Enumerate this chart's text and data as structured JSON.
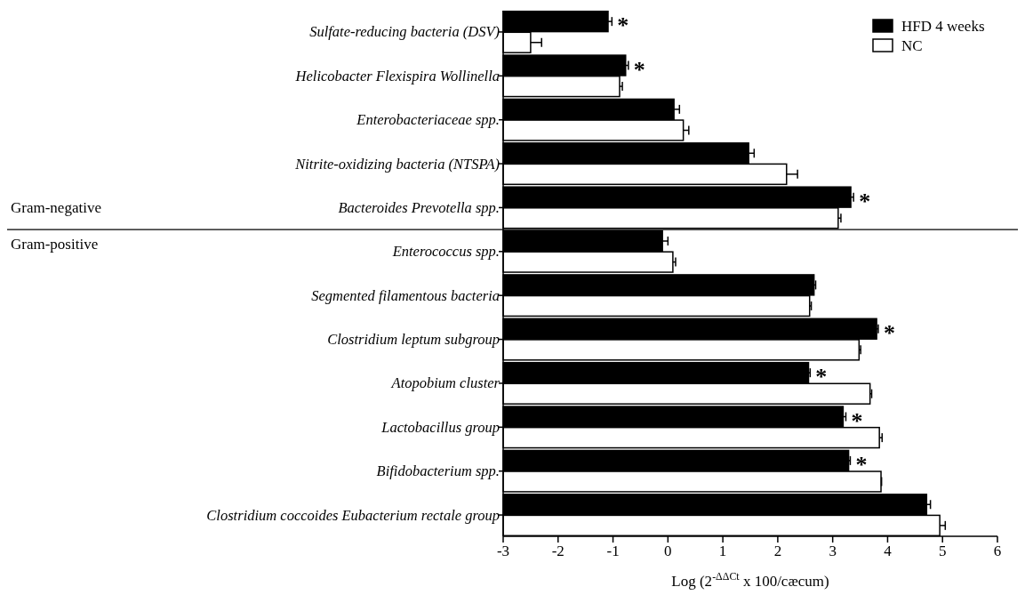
{
  "chart_data": {
    "type": "bar",
    "orientation": "horizontal",
    "xlabel": "Log (2$^{-ΔΔCt}$ x 100/cæcum)",
    "categories": [
      "Sulfate-reducing bacteria (DSV)",
      "Helicobacter Flexispira Wollinella",
      "Enterobacteriaceae spp.",
      "Nitrite-oxidizing bacteria (NTSPA)",
      "Bacteroides Prevotella spp.",
      "Enterococcus spp.",
      "Segmented filamentous bacteria",
      "Clostridium leptum subgroup",
      "Atopobium cluster",
      "Lactobacillus group",
      "Bifidobacterium spp.",
      "Clostridium coccoides Eubacterium rectale group"
    ],
    "series": [
      {
        "name": "HFD 4 weeks",
        "color": "#000000",
        "base": [
          -3,
          -3,
          -3,
          -3,
          -3,
          -3,
          -3,
          -3,
          -3,
          -3,
          -3,
          -3
        ],
        "values": [
          1.91,
          2.23,
          3.11,
          4.47,
          6.33,
          2.9,
          5.66,
          6.8,
          5.56,
          6.19,
          6.29,
          7.71
        ],
        "errors": [
          0.07,
          0.05,
          0.1,
          0.1,
          0.05,
          0.1,
          0.03,
          0.03,
          0.03,
          0.05,
          0.03,
          0.07
        ]
      },
      {
        "name": "NC",
        "color": "#ffffff",
        "base": [
          -3,
          -3,
          -3,
          -3,
          -3,
          -3,
          -3,
          -3,
          -3,
          -3,
          -3,
          -3
        ],
        "values": [
          0.5,
          2.12,
          3.28,
          5.16,
          6.1,
          3.09,
          5.58,
          6.48,
          6.68,
          6.85,
          6.88,
          7.95
        ],
        "errors": [
          0.2,
          0.05,
          0.1,
          0.2,
          0.05,
          0.05,
          0.03,
          0.03,
          0.03,
          0.05,
          0.01,
          0.1
        ]
      }
    ],
    "xlim": [
      -3,
      6
    ],
    "xticks": [
      -3,
      -2,
      -1,
      0,
      1,
      2,
      3,
      4,
      5,
      6
    ],
    "legend": "top right",
    "grid": false,
    "annotations": [
      {
        "text": "*",
        "x": -1.09,
        "y": "Sulfate-reducing bacteria (DSV)"
      },
      {
        "text": "*",
        "x": -0.77,
        "y": "Helicobacter Flexispira Wollinella"
      },
      {
        "text": "*",
        "x": 3.33,
        "y": "Bacteroides Prevotella spp."
      },
      {
        "text": "*",
        "x": 3.8,
        "y": "Clostridium leptum subgroup"
      },
      {
        "text": "*",
        "x": 2.56,
        "y": "Atopobium cluster"
      },
      {
        "text": "*",
        "x": 3.19,
        "y": "Lactobacillus group"
      },
      {
        "text": "*",
        "x": 3.29,
        "y": "Bifidobacterium spp."
      },
      "Gram-negative",
      "Gram-positive"
    ]
  }
}
